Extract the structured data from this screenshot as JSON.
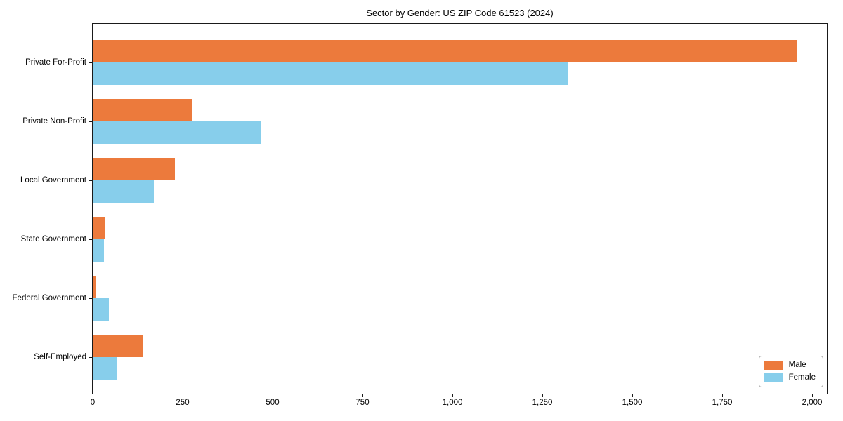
{
  "chart_data": {
    "type": "bar",
    "orientation": "horizontal",
    "title": "Sector by Gender: US ZIP Code 61523 (2024)",
    "xlabel": "",
    "ylabel": "",
    "categories": [
      "Private For-Profit",
      "Private Non-Profit",
      "Local Government",
      "State Government",
      "Federal Government",
      "Self-Employed"
    ],
    "series": [
      {
        "name": "Male",
        "color": "#ec7a3c",
        "values": [
          1957,
          275,
          229,
          34,
          9,
          138
        ]
      },
      {
        "name": "Female",
        "color": "#87ceeb",
        "values": [
          1322,
          466,
          170,
          31,
          44,
          66
        ]
      }
    ],
    "xlim": [
      0,
      2041
    ],
    "x_tick_values": [
      0,
      250,
      500,
      750,
      1000,
      1250,
      1500,
      1750,
      2000
    ],
    "x_tick_labels": [
      "0",
      "250",
      "500",
      "750",
      "1,000",
      "1,250",
      "1,500",
      "1,750",
      "2,000"
    ],
    "grid": false,
    "legend_position": "lower right"
  }
}
